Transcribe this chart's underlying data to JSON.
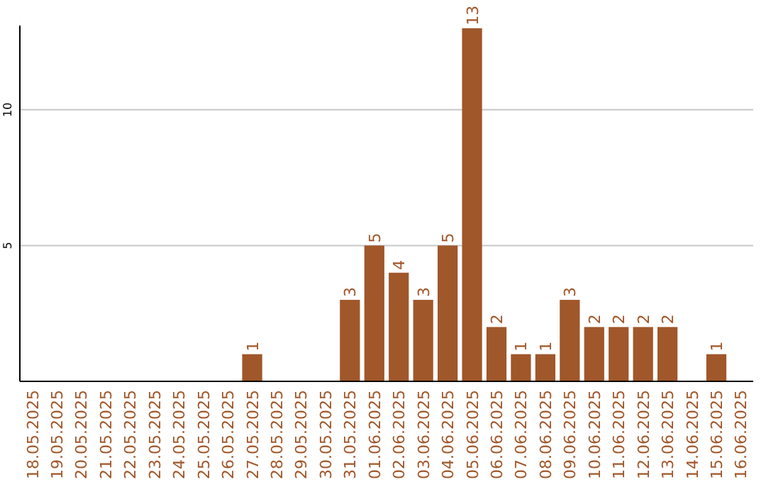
{
  "chart_data": {
    "type": "bar",
    "categories": [
      "18.05.2025",
      "19.05.2025",
      "20.05.2025",
      "21.05.2025",
      "22.05.2025",
      "23.05.2025",
      "24.05.2025",
      "25.05.2025",
      "26.05.2025",
      "27.05.2025",
      "28.05.2025",
      "29.05.2025",
      "30.05.2025",
      "31.05.2025",
      "01.06.2025",
      "02.06.2025",
      "03.06.2025",
      "04.06.2025",
      "05.06.2025",
      "06.06.2025",
      "07.06.2025",
      "08.06.2025",
      "09.06.2025",
      "10.06.2025",
      "11.06.2025",
      "12.06.2025",
      "13.06.2025",
      "14.06.2025",
      "15.06.2025",
      "16.06.2025"
    ],
    "values": [
      0,
      0,
      0,
      0,
      0,
      0,
      0,
      0,
      0,
      1,
      0,
      0,
      0,
      3,
      5,
      4,
      3,
      5,
      13,
      2,
      1,
      1,
      3,
      2,
      2,
      2,
      2,
      0,
      1,
      0
    ],
    "value_labels": [
      null,
      null,
      null,
      null,
      null,
      null,
      null,
      null,
      null,
      "1",
      null,
      null,
      null,
      "3",
      "5",
      "4",
      "3",
      "5",
      "13",
      "2",
      "1",
      "1",
      "3",
      "2",
      "2",
      "2",
      "2",
      null,
      "1",
      null
    ],
    "color": "#a0572a",
    "ylim": [
      0,
      13.1
    ],
    "yticks": [
      5,
      10
    ],
    "grid": "y"
  }
}
